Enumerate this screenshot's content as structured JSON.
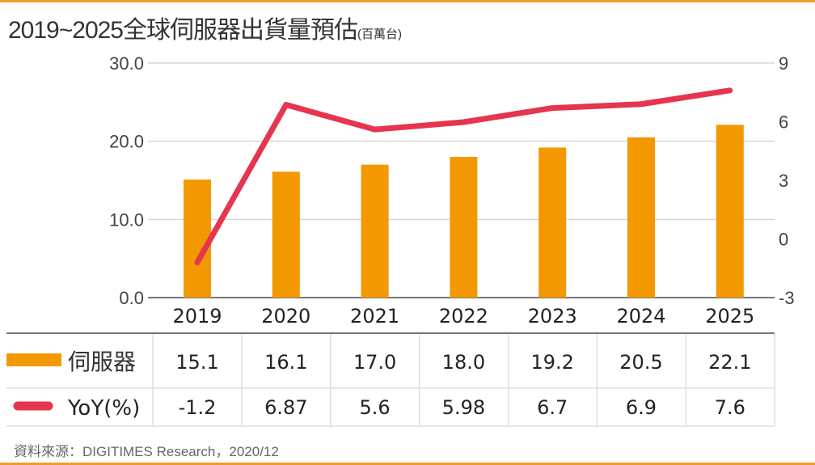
{
  "title": "2019~2025全球伺服器出貨量預估",
  "unit": "(百萬台)",
  "source": "資料來源：DIGITIMES Research，2020/12",
  "colors": {
    "bar": "#f39800",
    "line": "#e5354f",
    "accent": "#f39a2e"
  },
  "chart_data": {
    "type": "bar+line",
    "categories": [
      "2019",
      "2020",
      "2021",
      "2022",
      "2023",
      "2024",
      "2025"
    ],
    "left_axis": {
      "ylim": [
        0,
        30
      ],
      "ticks": [
        "0.0",
        "10.0",
        "20.0",
        "30.0"
      ]
    },
    "right_axis": {
      "ylim": [
        -3,
        9
      ],
      "ticks": [
        "-3",
        "0",
        "3",
        "6",
        "9"
      ]
    },
    "grid": true,
    "series": [
      {
        "name": "伺服器",
        "type": "bar",
        "axis": "left",
        "values": [
          15.1,
          16.1,
          17.0,
          18.0,
          19.2,
          20.5,
          22.1
        ],
        "labels": [
          "15.1",
          "16.1",
          "17.0",
          "18.0",
          "19.2",
          "20.5",
          "22.1"
        ]
      },
      {
        "name": "YoY(%)",
        "type": "line",
        "axis": "right",
        "values": [
          -1.2,
          6.87,
          5.6,
          5.98,
          6.7,
          6.9,
          7.6
        ],
        "labels": [
          "-1.2",
          "6.87",
          "5.6",
          "5.98",
          "6.7",
          "6.9",
          "7.6"
        ]
      }
    ]
  }
}
